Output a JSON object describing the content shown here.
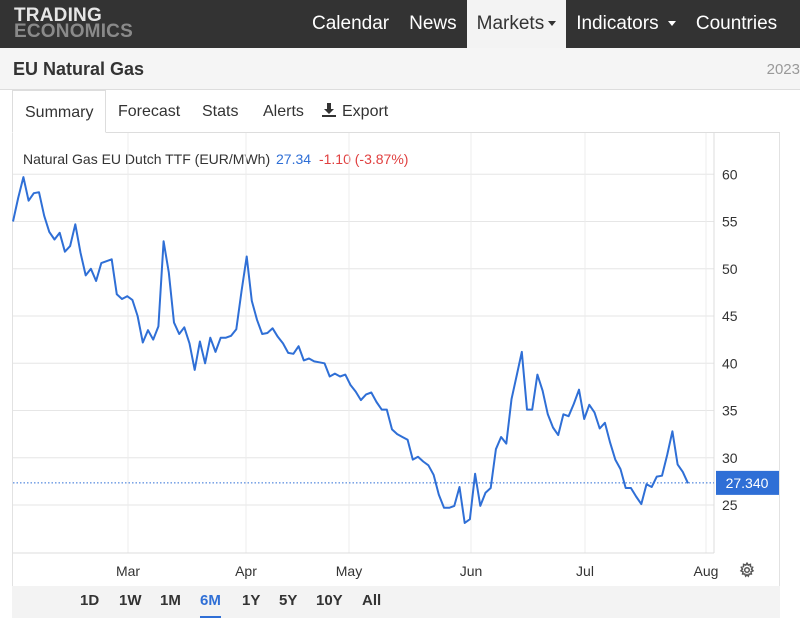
{
  "brand": {
    "line1": "TRADING",
    "line2": "ECONOMICS"
  },
  "nav": {
    "items": [
      {
        "label": "Calendar",
        "dropdown": false,
        "active": false
      },
      {
        "label": "News",
        "dropdown": false,
        "active": false
      },
      {
        "label": "Markets",
        "dropdown": true,
        "active": true
      },
      {
        "label": "Indicators",
        "dropdown": true,
        "active": false
      },
      {
        "label": "Countries",
        "dropdown": false,
        "active": false
      }
    ]
  },
  "page": {
    "title": "EU Natural Gas",
    "year": "2023"
  },
  "tabs": {
    "summary": "Summary",
    "forecast": "Forecast",
    "stats": "Stats",
    "alerts": "Alerts",
    "export": "Export"
  },
  "legend": {
    "name": "Natural Gas EU Dutch TTF (EUR/MWh)",
    "price": "27.34",
    "change": "-1.10 (-3.87%)"
  },
  "ranges": [
    "1D",
    "1W",
    "1M",
    "6M",
    "1Y",
    "5Y",
    "10Y",
    "All"
  ],
  "active_range": "6M",
  "colors": {
    "line": "#2f6fd6",
    "change_negative": "#e04040",
    "nav_bg": "#333333"
  },
  "icons": {
    "export": "download-icon",
    "settings": "gear-icon"
  },
  "chart_data": {
    "type": "line",
    "title": "Natural Gas EU Dutch TTF (EUR/MWh)",
    "x_ticks": [
      "Mar",
      "Apr",
      "May",
      "Jun",
      "Jul",
      "Aug"
    ],
    "y_ticks": [
      25,
      30,
      35,
      40,
      45,
      50,
      55,
      60
    ],
    "ylim": [
      20,
      63
    ],
    "grid": true,
    "last_value_label": "27.340",
    "last_value": 27.34,
    "series": [
      {
        "values": [
          55.0,
          57.5,
          59.7,
          57.2,
          58.0,
          58.1,
          55.6,
          53.9,
          53.1,
          53.8,
          51.8,
          52.4,
          54.7,
          51.7,
          49.3,
          50.0,
          48.7,
          50.6,
          50.8,
          51.0,
          47.3,
          46.8,
          47.1,
          46.7,
          45.0,
          42.2,
          43.5,
          42.5,
          43.9,
          52.9,
          49.6,
          44.3,
          43.1,
          43.8,
          42.1,
          39.3,
          42.3,
          40.0,
          42.7,
          41.2,
          42.7,
          42.7,
          42.9,
          43.6,
          47.6,
          51.3,
          46.6,
          44.6,
          43.1,
          43.2,
          43.7,
          42.8,
          42.1,
          41.1,
          41.0,
          41.8,
          40.3,
          40.5,
          40.2,
          40.1,
          40.0,
          38.6,
          38.9,
          38.6,
          38.8,
          37.7,
          37.0,
          36.1,
          36.7,
          36.9,
          35.9,
          35.1,
          35.1,
          33.0,
          32.5,
          32.2,
          31.9,
          29.8,
          30.1,
          29.6,
          29.2,
          28.2,
          26.1,
          24.7,
          24.7,
          24.9,
          26.9,
          23.1,
          23.5,
          28.3,
          24.9,
          26.3,
          26.8,
          30.9,
          32.2,
          31.5,
          36.2,
          38.7,
          41.2,
          35.1,
          35.1,
          38.8,
          37.1,
          34.6,
          33.2,
          32.4,
          34.6,
          34.4,
          35.7,
          37.2,
          34.1,
          35.6,
          34.8,
          33.1,
          33.7,
          31.6,
          29.8,
          28.8,
          26.8,
          26.8,
          25.9,
          25.1,
          27.2,
          26.9,
          28.0,
          28.1,
          30.3,
          32.8,
          29.3,
          28.5,
          27.3
        ]
      }
    ]
  }
}
